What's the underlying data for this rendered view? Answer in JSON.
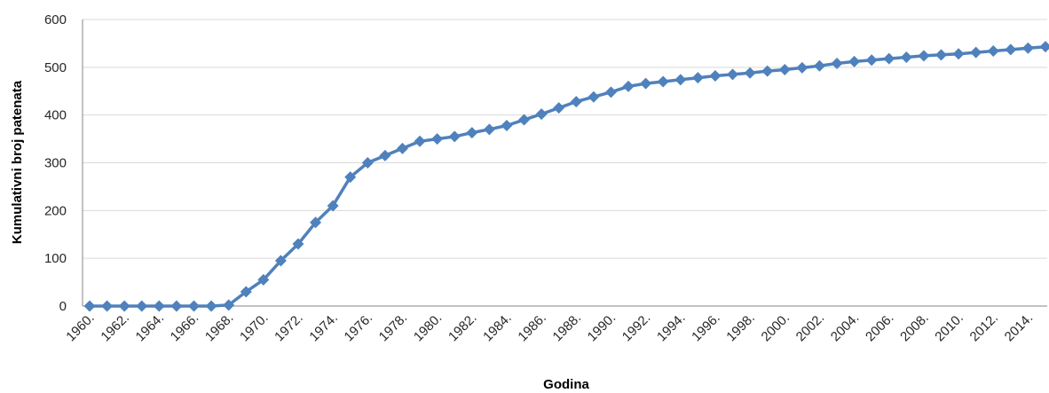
{
  "chart_data": {
    "type": "line",
    "xlabel": "Godina",
    "ylabel": "Kumulativni broj patenata",
    "ylim": [
      0,
      600
    ],
    "yticks": [
      "0",
      "100",
      "200",
      "300",
      "400",
      "500",
      "600"
    ],
    "grid": "horizontal",
    "legend": "none",
    "colors": {
      "series": "#4f81bd",
      "grid": "#d9d9d9",
      "axis": "#868686"
    },
    "x": [
      1960,
      1961,
      1962,
      1963,
      1964,
      1965,
      1966,
      1967,
      1968,
      1969,
      1970,
      1971,
      1972,
      1973,
      1974,
      1975,
      1976,
      1977,
      1978,
      1979,
      1980,
      1981,
      1982,
      1983,
      1984,
      1985,
      1986,
      1987,
      1988,
      1989,
      1990,
      1991,
      1992,
      1993,
      1994,
      1995,
      1996,
      1997,
      1998,
      1999,
      2000,
      2001,
      2002,
      2003,
      2004,
      2005,
      2006,
      2007,
      2008,
      2009,
      2010,
      2011,
      2012,
      2013,
      2014,
      2015
    ],
    "xtick_labels": [
      "1960.",
      "1962.",
      "1964.",
      "1966.",
      "1968.",
      "1970.",
      "1972.",
      "1974.",
      "1976.",
      "1978.",
      "1980.",
      "1982.",
      "1984.",
      "1986.",
      "1988.",
      "1990.",
      "1992.",
      "1994.",
      "1996.",
      "1998.",
      "2000.",
      "2002.",
      "2004.",
      "2006.",
      "2008.",
      "2010.",
      "2012.",
      "2014."
    ],
    "series": [
      {
        "values": [
          0,
          0,
          0,
          0,
          0,
          0,
          0,
          0,
          2,
          30,
          55,
          95,
          130,
          175,
          210,
          270,
          300,
          315,
          330,
          345,
          350,
          355,
          363,
          370,
          378,
          390,
          402,
          415,
          428,
          438,
          448,
          460,
          466,
          470,
          474,
          478,
          482,
          485,
          488,
          492,
          495,
          499,
          503,
          508,
          512,
          515,
          518,
          521,
          524,
          526,
          528,
          531,
          534,
          537,
          540,
          543
        ]
      }
    ]
  }
}
